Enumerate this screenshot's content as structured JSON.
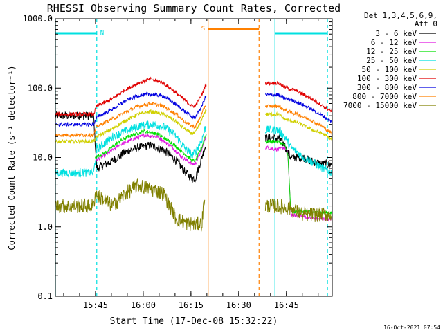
{
  "chart_data": {
    "type": "line",
    "title": "RHESSI Observing Summary Count Rates, Corrected",
    "xlabel": "Start Time (17-Dec-08 15:32:22)",
    "ylabel": "Corrected Count Rate (s⁻¹ detector⁻¹)",
    "ylog": true,
    "ylim": [
      0.1,
      1000
    ],
    "xlim_min": [
      0,
      87
    ],
    "y_ticks": [
      "0.1",
      "1.0",
      "10.0",
      "100.0",
      "1000.0"
    ],
    "x_ticks": [
      {
        "label": "15:45",
        "min": 12.6
      },
      {
        "label": "16:00",
        "min": 27.6
      },
      {
        "label": "16:15",
        "min": 42.6
      },
      {
        "label": "16:30",
        "min": 57.6
      },
      {
        "label": "16:45",
        "min": 72.6
      },
      {
        "label": "17:00",
        "min": 87.6
      }
    ],
    "legend_header": [
      "Det 1,3,4,5,6,9,",
      "Att 0"
    ],
    "legend_placement": "top-right",
    "series": [
      {
        "name": "3 - 6 keV",
        "color": "#000000",
        "seg1": [
          [
            0,
            40
          ],
          [
            12,
            40
          ],
          [
            13,
            7
          ],
          [
            18,
            9
          ],
          [
            22,
            12
          ],
          [
            26,
            14
          ],
          [
            30,
            15
          ],
          [
            34,
            13
          ],
          [
            38,
            9
          ],
          [
            41,
            6
          ],
          [
            43,
            5
          ],
          [
            44,
            5
          ],
          [
            46,
            10
          ],
          [
            47,
            14
          ],
          [
            47.5,
            15
          ]
        ],
        "seg2": [
          [
            66,
            19
          ],
          [
            70,
            19
          ],
          [
            71,
            17
          ],
          [
            72,
            15
          ],
          [
            73,
            12
          ],
          [
            74,
            10
          ],
          [
            76,
            10
          ],
          [
            78,
            10
          ],
          [
            80,
            9
          ],
          [
            84,
            8
          ],
          [
            87,
            8
          ]
        ]
      },
      {
        "name": "6 - 12 keV",
        "color": "#e018e0",
        "seg1": [
          [
            12.5,
            9
          ],
          [
            16,
            11
          ],
          [
            20,
            15
          ],
          [
            24,
            18
          ],
          [
            28,
            21
          ],
          [
            32,
            20
          ],
          [
            36,
            15
          ],
          [
            40,
            10
          ],
          [
            43,
            8
          ],
          [
            44,
            8
          ],
          [
            46,
            13
          ],
          [
            47,
            18
          ],
          [
            47.5,
            20
          ]
        ],
        "seg2": [
          [
            66,
            14
          ],
          [
            70,
            13
          ],
          [
            72,
            14
          ],
          [
            73,
            12
          ],
          [
            74,
            1.5
          ],
          [
            78,
            1.4
          ],
          [
            82,
            1.3
          ],
          [
            87,
            1.3
          ]
        ]
      },
      {
        "name": "12 - 25 keV",
        "color": "#00e000",
        "seg1": [
          [
            12.5,
            10
          ],
          [
            16,
            12
          ],
          [
            20,
            17
          ],
          [
            24,
            21
          ],
          [
            28,
            24
          ],
          [
            32,
            22
          ],
          [
            36,
            17
          ],
          [
            40,
            12
          ],
          [
            43,
            9
          ],
          [
            44,
            9
          ],
          [
            46,
            14
          ],
          [
            47,
            20
          ],
          [
            47.5,
            22
          ]
        ],
        "seg2": [
          [
            66,
            17
          ],
          [
            70,
            17
          ],
          [
            72,
            15
          ],
          [
            73,
            12
          ],
          [
            74,
            1.6
          ],
          [
            78,
            1.7
          ],
          [
            82,
            1.6
          ],
          [
            87,
            1.6
          ]
        ]
      },
      {
        "name": "25 - 50 keV",
        "color": "#00e0e0",
        "seg1": [
          [
            0,
            6
          ],
          [
            12,
            6
          ],
          [
            13,
            13
          ],
          [
            18,
            20
          ],
          [
            22,
            24
          ],
          [
            26,
            28
          ],
          [
            30,
            30
          ],
          [
            34,
            28
          ],
          [
            38,
            20
          ],
          [
            41,
            13
          ],
          [
            43,
            11
          ],
          [
            44,
            12
          ],
          [
            46,
            18
          ],
          [
            47,
            26
          ],
          [
            47.5,
            28
          ]
        ],
        "seg2": [
          [
            66,
            25
          ],
          [
            70,
            25
          ],
          [
            72,
            20
          ],
          [
            74,
            14
          ],
          [
            76,
            12
          ],
          [
            78,
            10
          ],
          [
            80,
            9
          ],
          [
            84,
            7
          ],
          [
            87,
            6
          ]
        ]
      },
      {
        "name": "50 - 100 keV",
        "color": "#d0d000",
        "seg1": [
          [
            0,
            17
          ],
          [
            12,
            17
          ],
          [
            13,
            20
          ],
          [
            18,
            26
          ],
          [
            22,
            34
          ],
          [
            26,
            42
          ],
          [
            30,
            46
          ],
          [
            34,
            42
          ],
          [
            38,
            33
          ],
          [
            41,
            25
          ],
          [
            43,
            22
          ],
          [
            44,
            23
          ],
          [
            46,
            35
          ],
          [
            47,
            46
          ],
          [
            47.5,
            50
          ]
        ],
        "seg2": [
          [
            66,
            42
          ],
          [
            70,
            42
          ],
          [
            72,
            36
          ],
          [
            76,
            32
          ],
          [
            80,
            26
          ],
          [
            84,
            22
          ],
          [
            87,
            18
          ]
        ]
      },
      {
        "name": "100 - 300 keV",
        "color": "#e00000",
        "seg1": [
          [
            0,
            42
          ],
          [
            12,
            42
          ],
          [
            13,
            55
          ],
          [
            18,
            70
          ],
          [
            22,
            95
          ],
          [
            26,
            118
          ],
          [
            30,
            135
          ],
          [
            34,
            118
          ],
          [
            38,
            85
          ],
          [
            41,
            65
          ],
          [
            43,
            55
          ],
          [
            44,
            56
          ],
          [
            46,
            80
          ],
          [
            47,
            105
          ],
          [
            47.5,
            115
          ]
        ],
        "seg2": [
          [
            66,
            118
          ],
          [
            70,
            118
          ],
          [
            72,
            103
          ],
          [
            76,
            90
          ],
          [
            80,
            72
          ],
          [
            84,
            56
          ],
          [
            87,
            45
          ]
        ]
      },
      {
        "name": "300 - 800 keV",
        "color": "#0000e0",
        "seg1": [
          [
            0,
            30
          ],
          [
            12,
            30
          ],
          [
            13,
            38
          ],
          [
            18,
            50
          ],
          [
            22,
            65
          ],
          [
            26,
            78
          ],
          [
            30,
            82
          ],
          [
            34,
            77
          ],
          [
            38,
            58
          ],
          [
            41,
            45
          ],
          [
            43,
            38
          ],
          [
            44,
            38
          ],
          [
            46,
            55
          ],
          [
            47,
            72
          ],
          [
            47.5,
            78
          ]
        ],
        "seg2": [
          [
            66,
            80
          ],
          [
            70,
            80
          ],
          [
            72,
            72
          ],
          [
            76,
            63
          ],
          [
            80,
            51
          ],
          [
            84,
            40
          ],
          [
            87,
            32
          ]
        ]
      },
      {
        "name": "800 - 7000 keV",
        "color": "#ff8000",
        "seg1": [
          [
            0,
            21
          ],
          [
            12,
            21
          ],
          [
            13,
            28
          ],
          [
            18,
            36
          ],
          [
            22,
            45
          ],
          [
            26,
            55
          ],
          [
            30,
            60
          ],
          [
            34,
            55
          ],
          [
            38,
            42
          ],
          [
            41,
            32
          ],
          [
            43,
            28
          ],
          [
            44,
            28
          ],
          [
            46,
            42
          ],
          [
            47,
            55
          ],
          [
            47.5,
            60
          ]
        ],
        "seg2": [
          [
            66,
            55
          ],
          [
            70,
            55
          ],
          [
            72,
            48
          ],
          [
            76,
            42
          ],
          [
            80,
            35
          ],
          [
            84,
            28
          ],
          [
            87,
            22
          ]
        ]
      },
      {
        "name": "7000 - 15000 keV",
        "color": "#808000",
        "seg1": [
          [
            0,
            2
          ],
          [
            12,
            2
          ],
          [
            12.5,
            3
          ],
          [
            18,
            2
          ],
          [
            22,
            3
          ],
          [
            26,
            4
          ],
          [
            30,
            3.5
          ],
          [
            34,
            3
          ],
          [
            36,
            2
          ],
          [
            38,
            1.3
          ],
          [
            42,
            1.1
          ],
          [
            46,
            1.1
          ],
          [
            47,
            3
          ]
        ],
        "seg2": [
          [
            66,
            2
          ],
          [
            70,
            2
          ],
          [
            74,
            1.8
          ],
          [
            78,
            1.5
          ],
          [
            82,
            1.5
          ],
          [
            87,
            1.5
          ]
        ]
      }
    ],
    "markers": [
      {
        "label": "N",
        "color": "#00e0e0",
        "lines": [
          {
            "min": 0,
            "dashed": false
          },
          {
            "min": 13,
            "dashed": true
          },
          {
            "min": 69,
            "dashed": false
          },
          {
            "min": 85.5,
            "dashed": true
          }
        ],
        "bars": [
          [
            0,
            13
          ],
          [
            69,
            85.5
          ]
        ]
      },
      {
        "label": "S",
        "color": "#ff8000",
        "lines": [
          {
            "min": 48,
            "dashed": false
          },
          {
            "min": 64,
            "dashed": true
          }
        ],
        "bars": [
          [
            48,
            64
          ]
        ]
      }
    ]
  },
  "timestamp": "16-Oct-2021 07:54"
}
